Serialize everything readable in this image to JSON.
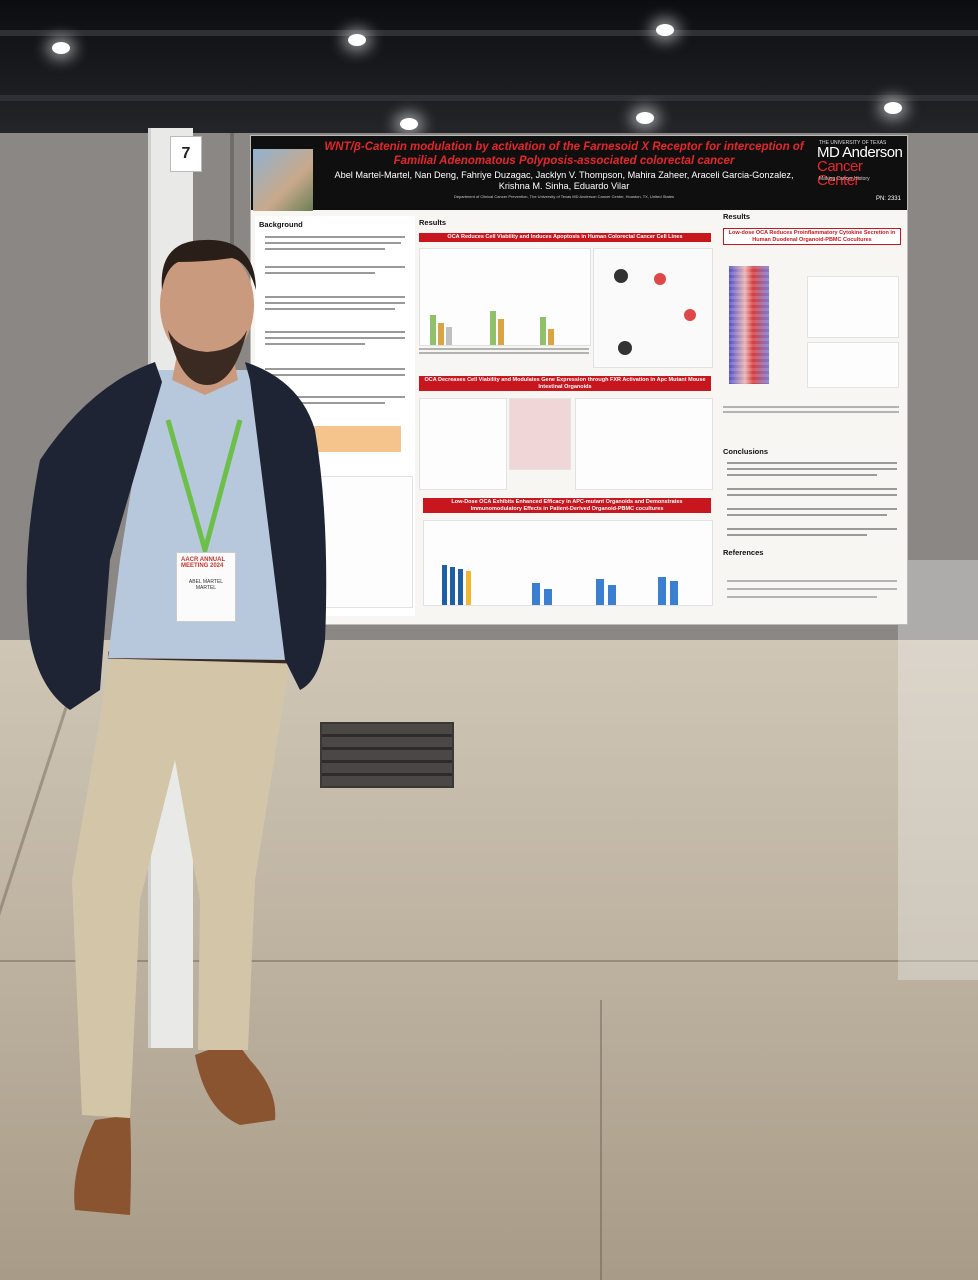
{
  "booth": {
    "number": "7"
  },
  "poster": {
    "title": "WNT/β-Catenin modulation by activation of the Farnesoid X Receptor for interception of Familial Adenomatous Polyposis-associated colorectal cancer",
    "authors": "Abel Martel-Martel, Nan Deng, Fahriye Duzagac, Jacklyn V. Thompson, Mahira Zaheer, Araceli Garcia-Gonzalez, Krishna M. Sinha, Eduardo Vilar",
    "department": "Department of Clinical Cancer Prevention, The University of Texas MD Anderson Cancer Center, Houston, TX, United States",
    "logo": {
      "top": "THE UNIVERSITY OF TEXAS",
      "line1": "MD Anderson",
      "line2": "Cancer Center",
      "tagline": "Making Cancer History"
    },
    "poster_number": "PN: 2331",
    "sections": {
      "background": "Background",
      "results_left": "Results",
      "results_right": "Results",
      "conclusions": "Conclusions",
      "references": "References"
    },
    "banners": {
      "b1": "OCA Reduces Cell Viability and Induces Apoptosis in Human Colorectal Cancer Cell Lines",
      "b2": "OCA Decreases Cell Viability and Modulates Gene Expression through FXR Activation in Apc Mutant Mouse Intestinal Organoids",
      "b3": "Low-Dose OCA Exhibits Enhanced Efficacy in APC-mutant Organoids and Demonstrates Immunomodulatory Effects in Patient-Derived Organoid-PBMC cocultures",
      "b4": "Low-dose OCA Reduces Proinflammatory Cytokine Secretion in Human Duodenal Organoid-PBMC Cocultures"
    }
  },
  "badge": {
    "org": "AACR ANNUAL MEETING 2024",
    "name": "ABEL MARTEL MARTEL"
  }
}
